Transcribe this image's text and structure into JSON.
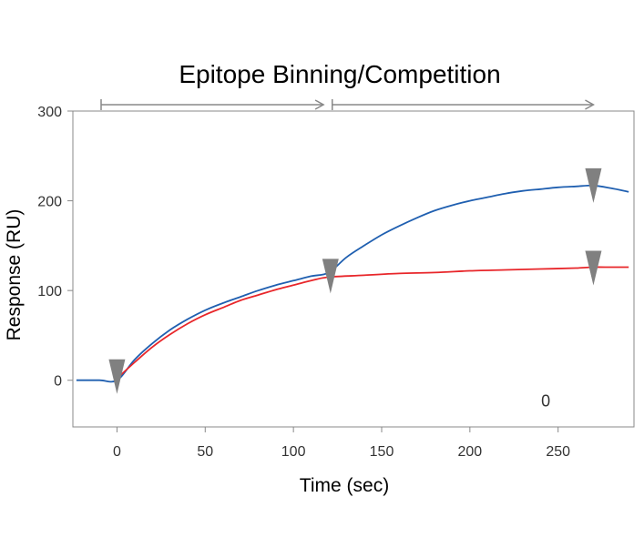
{
  "chart_data": {
    "type": "line",
    "title": "Epitope Binning/Competition",
    "xlabel": "Time (sec)",
    "ylabel": "Response (RU)",
    "xlim": [
      -25,
      293
    ],
    "ylim": [
      -52,
      300
    ],
    "xticks": [
      0,
      50,
      100,
      150,
      200,
      250
    ],
    "yticks": [
      0,
      100,
      200,
      300
    ],
    "grid": false,
    "series": [
      {
        "color": "#1f5fb0",
        "x": [
          -23,
          -10,
          0,
          10,
          20,
          30,
          40,
          50,
          60,
          70,
          80,
          90,
          100,
          110,
          120,
          130,
          140,
          150,
          160,
          170,
          180,
          190,
          200,
          210,
          220,
          230,
          240,
          250,
          260,
          270,
          280,
          290
        ],
        "y": [
          0,
          0,
          0,
          23,
          41,
          56,
          68,
          78,
          86,
          93,
          100,
          106,
          111,
          116,
          120,
          137,
          150,
          162,
          172,
          181,
          189,
          195,
          200,
          204,
          208,
          211,
          213,
          215,
          216,
          217,
          214,
          210
        ]
      },
      {
        "color": "#e8262a",
        "x": [
          0,
          10,
          20,
          30,
          40,
          50,
          60,
          70,
          80,
          90,
          100,
          110,
          120,
          140,
          160,
          180,
          200,
          220,
          240,
          260,
          270,
          280,
          290
        ],
        "y": [
          2,
          20,
          37,
          51,
          63,
          73,
          81,
          89,
          95,
          101,
          106,
          111,
          115,
          117,
          119,
          120,
          122,
          123,
          124,
          125,
          126,
          126,
          126
        ]
      }
    ],
    "markers": [
      {
        "x": 0,
        "y": 5
      },
      {
        "x": 121,
        "y": 117
      },
      {
        "x": 270,
        "y": 218
      },
      {
        "x": 270,
        "y": 126
      }
    ],
    "phase_arrows": [
      {
        "from": -9,
        "to": 117
      },
      {
        "from": 122,
        "to": 270
      }
    ],
    "annotation": {
      "text": "0",
      "x": 243,
      "y": -23
    }
  }
}
